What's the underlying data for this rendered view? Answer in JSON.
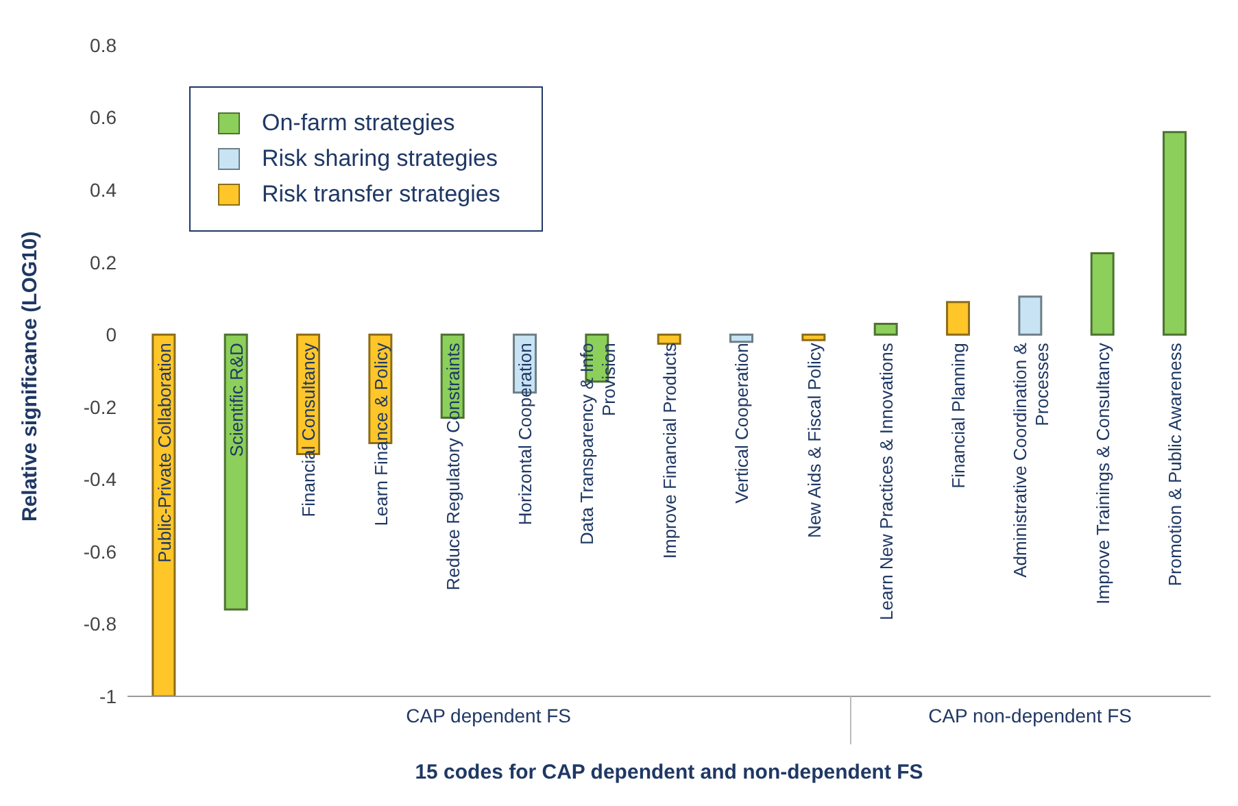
{
  "chart_data": {
    "type": "bar",
    "stacked": true,
    "xlabel": "15 codes for CAP dependent and non-dependent FS",
    "ylabel": "Relative significance (LOG10)",
    "categories": [
      "Public-Private Collaboration",
      "Scientific R&D",
      "Financial Consultancy",
      "Learn Finance & Policy",
      "Reduce Regulatory Constraints",
      "Horizontal Cooperation",
      "Data Transparency & Info\nProvision",
      "Improve Financial Products",
      "Vertical Cooperation",
      "New Aids & Fiscal Policy",
      "Learn New Practices & Innovations",
      "Financial Planning",
      "Administrative Coordination &\nProcesses",
      "Improve Trainings & Consultancy",
      "Promotion & Public Awareness"
    ],
    "series": [
      {
        "name": "On-farm strategies",
        "color": "#8ccf5a",
        "values": [
          null,
          -0.76,
          null,
          null,
          -0.23,
          null,
          -0.13,
          null,
          null,
          null,
          0.03,
          null,
          null,
          0.225,
          0.56
        ]
      },
      {
        "name": "Risk sharing strategies",
        "color": "#c8e4f4",
        "values": [
          null,
          null,
          null,
          null,
          null,
          -0.16,
          null,
          null,
          -0.02,
          null,
          null,
          null,
          0.105,
          null,
          null
        ]
      },
      {
        "name": "Risk transfer strategies",
        "color": "#ffc629",
        "values": [
          -1,
          null,
          -0.33,
          -0.3,
          null,
          null,
          null,
          -0.025,
          null,
          -0.015,
          null,
          0.09,
          null,
          null,
          null
        ]
      }
    ],
    "ylim": [
      -1,
      0.8
    ],
    "yticks": [
      -1,
      -0.8,
      -0.6,
      -0.4,
      -0.2,
      0,
      0.2,
      0.4,
      0.6,
      0.8
    ],
    "grid": false,
    "legend": "top left",
    "annotations": [
      "CAP dependent FS",
      "CAP non-dependent FS"
    ]
  }
}
